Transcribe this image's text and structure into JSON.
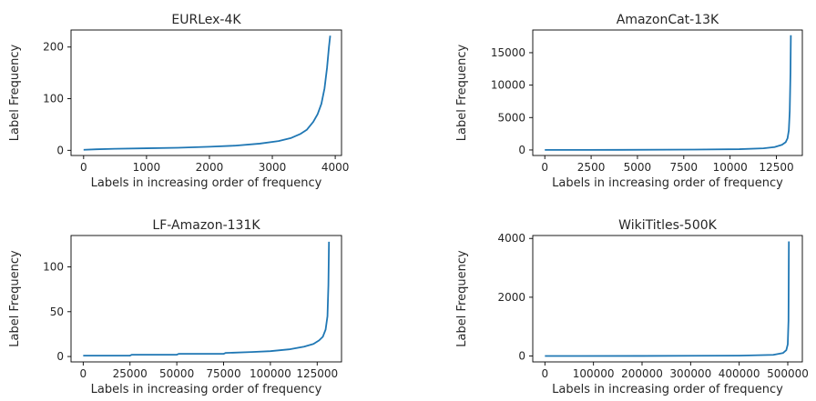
{
  "chart_data": [
    {
      "type": "line",
      "title": "EURLex-4K",
      "xlabel": "Labels in increasing order of frequency",
      "ylabel": "Label Frequency",
      "xlim": [
        -200,
        4100
      ],
      "ylim": [
        -10,
        233
      ],
      "xticks": [
        0,
        1000,
        2000,
        3000,
        4000
      ],
      "xtick_labels": [
        "0",
        "1000",
        "2000",
        "3000",
        "4000"
      ],
      "yticks": [
        0,
        100,
        200
      ],
      "ytick_labels": [
        "0",
        "100",
        "200"
      ],
      "color": "#1f77b4",
      "grid": false,
      "series": [
        {
          "x": [
            0,
            200,
            500,
            1000,
            1500,
            2000,
            2400,
            2800,
            3100,
            3300,
            3450,
            3550,
            3650,
            3720,
            3780,
            3830,
            3870,
            3900,
            3920
          ],
          "y": [
            1,
            2,
            3,
            4,
            5,
            7,
            9,
            13,
            18,
            24,
            32,
            40,
            55,
            70,
            90,
            120,
            160,
            200,
            222
          ]
        }
      ]
    },
    {
      "type": "line",
      "title": "AmazonCat-13K",
      "xlabel": "Labels in increasing order of frequency",
      "ylabel": "Label Frequency",
      "xlim": [
        -650,
        13900
      ],
      "ylim": [
        -850,
        18500
      ],
      "xticks": [
        0,
        2500,
        5000,
        7500,
        10000,
        12500
      ],
      "xtick_labels": [
        "0",
        "2500",
        "5000",
        "7500",
        "10000",
        "12500"
      ],
      "yticks": [
        0,
        5000,
        10000,
        15000
      ],
      "ytick_labels": [
        "0",
        "5000",
        "10000",
        "15000"
      ],
      "color": "#1f77b4",
      "grid": false,
      "series": [
        {
          "x": [
            0,
            4000,
            8000,
            10500,
            11800,
            12400,
            12800,
            13000,
            13100,
            13170,
            13220,
            13260,
            13280
          ],
          "y": [
            5,
            20,
            60,
            120,
            250,
            450,
            800,
            1200,
            1800,
            3000,
            6000,
            12000,
            17700
          ]
        }
      ]
    },
    {
      "type": "line",
      "title": "LF-Amazon-131K",
      "xlabel": "Labels in increasing order of frequency",
      "ylabel": "Label Frequency",
      "xlim": [
        -6500,
        138000
      ],
      "ylim": [
        -6,
        135
      ],
      "xticks": [
        0,
        25000,
        50000,
        75000,
        100000,
        125000
      ],
      "xtick_labels": [
        "0",
        "25000",
        "50000",
        "75000",
        "100000",
        "125000"
      ],
      "yticks": [
        0,
        50,
        100
      ],
      "ytick_labels": [
        "0",
        "50",
        "100"
      ],
      "color": "#1f77b4",
      "grid": false,
      "series": [
        {
          "x": [
            0,
            25000,
            26000,
            50000,
            51000,
            75000,
            76000,
            90000,
            100000,
            110000,
            118000,
            123000,
            126000,
            128000,
            129500,
            130500,
            131000,
            131300
          ],
          "y": [
            1,
            1,
            2,
            2,
            3,
            3,
            4,
            5,
            6,
            8,
            11,
            14,
            18,
            22,
            30,
            45,
            80,
            128
          ]
        }
      ]
    },
    {
      "type": "line",
      "title": "WikiTitles-500K",
      "xlabel": "Labels in increasing order of frequency",
      "ylabel": "Label Frequency",
      "xlim": [
        -25000,
        530000
      ],
      "ylim": [
        -200,
        4100
      ],
      "xticks": [
        0,
        100000,
        200000,
        300000,
        400000,
        500000
      ],
      "xtick_labels": [
        "0",
        "100000",
        "200000",
        "300000",
        "400000",
        "500000"
      ],
      "yticks": [
        0,
        2000,
        4000
      ],
      "ytick_labels": [
        "0",
        "2000",
        "4000"
      ],
      "color": "#1f77b4",
      "grid": false,
      "series": [
        {
          "x": [
            0,
            200000,
            400000,
            470000,
            490000,
            497000,
            500000,
            501500,
            502300
          ],
          "y": [
            1,
            3,
            12,
            40,
            100,
            200,
            400,
            1200,
            3900
          ]
        }
      ]
    }
  ]
}
